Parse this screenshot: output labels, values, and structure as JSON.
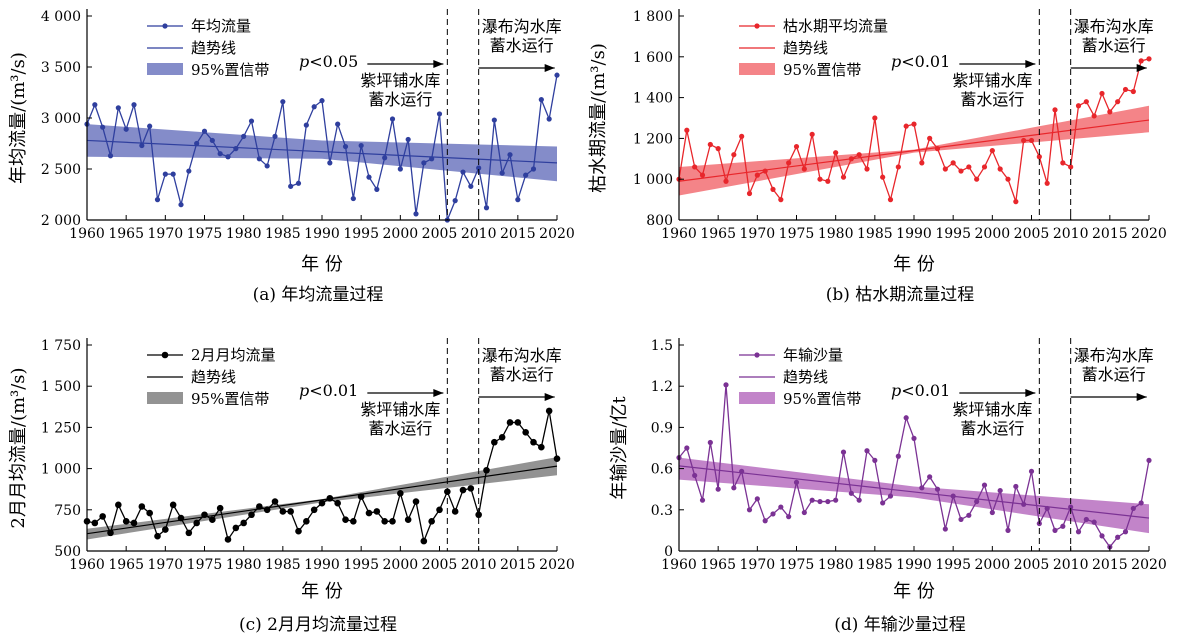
{
  "panels": [
    {
      "id": "a",
      "caption": "(a) 年均流量过程",
      "chart_data": {
        "type": "line",
        "xlabel": "年 份",
        "ylabel": "年均流量/(m³/s)",
        "xlim": [
          1960,
          2020
        ],
        "ylim": [
          2000,
          4000
        ],
        "xticks": [
          1960,
          1965,
          1970,
          1975,
          1980,
          1985,
          1990,
          1995,
          2000,
          2005,
          2010,
          2015,
          2020
        ],
        "yticks": [
          2000,
          2500,
          3000,
          3500,
          4000
        ],
        "ytick_labels": [
          "2 000",
          "2 500",
          "3 000",
          "3 500",
          "4 000"
        ],
        "color": "#2f3f9e",
        "band_color": "#6f78c0",
        "series": [
          {
            "name": "年均流量",
            "x": [
              1960,
              1961,
              1962,
              1963,
              1964,
              1965,
              1966,
              1967,
              1968,
              1969,
              1970,
              1971,
              1972,
              1973,
              1974,
              1975,
              1976,
              1977,
              1978,
              1979,
              1980,
              1981,
              1982,
              1983,
              1984,
              1985,
              1986,
              1987,
              1988,
              1989,
              1990,
              1991,
              1992,
              1993,
              1994,
              1995,
              1996,
              1997,
              1998,
              1999,
              2000,
              2001,
              2002,
              2003,
              2004,
              2005,
              2006,
              2007,
              2008,
              2009,
              2010,
              2011,
              2012,
              2013,
              2014,
              2015,
              2016,
              2017,
              2018,
              2019,
              2020
            ],
            "y": [
              2940,
              3130,
              2910,
              2630,
              3100,
              2890,
              3130,
              2730,
              2920,
              2200,
              2450,
              2450,
              2150,
              2480,
              2750,
              2870,
              2780,
              2650,
              2620,
              2700,
              2820,
              2970,
              2600,
              2530,
              2820,
              3160,
              2330,
              2360,
              2930,
              3110,
              3170,
              2560,
              2940,
              2720,
              2210,
              2730,
              2420,
              2300,
              2610,
              2990,
              2500,
              2790,
              2060,
              2560,
              2600,
              3040,
              2000,
              2190,
              2470,
              2330,
              2510,
              2120,
              2980,
              2460,
              2640,
              2200,
              2440,
              2500,
              3180,
              2990,
              3420
            ]
          },
          {
            "name": "趋势线",
            "x": [
              1960,
              2020
            ],
            "y": [
              2780,
              2560
            ]
          },
          {
            "name": "95%置信带",
            "x": [
              1960,
              1990,
              2020
            ],
            "upper": [
              2940,
              2780,
              2720
            ],
            "lower": [
              2620,
              2600,
              2380
            ]
          }
        ],
        "p_text": "p<0.05",
        "dashed_lines": [
          2006,
          2010
        ],
        "annotations": {
          "zipingpu": [
            "紫坪铺水库",
            "蓄水运行"
          ],
          "pubugou": [
            "瀑布沟水库",
            "蓄水运行"
          ]
        }
      }
    },
    {
      "id": "b",
      "caption": "(b) 枯水期流量过程",
      "chart_data": {
        "type": "line",
        "xlabel": "年 份",
        "ylabel": "枯水期流量/(m³/s)",
        "xlim": [
          1960,
          2020
        ],
        "ylim": [
          800,
          1800
        ],
        "xticks": [
          1960,
          1965,
          1970,
          1975,
          1980,
          1985,
          1990,
          1995,
          2000,
          2005,
          2010,
          2015,
          2020
        ],
        "yticks": [
          800,
          1000,
          1200,
          1400,
          1600,
          1800
        ],
        "ytick_labels": [
          "800",
          "1 000",
          "1 200",
          "1 400",
          "1 600",
          "1 800"
        ],
        "color": "#e8262b",
        "band_color": "#f26f73",
        "series": [
          {
            "name": "枯水期平均流量",
            "x": [
              1960,
              1961,
              1962,
              1963,
              1964,
              1965,
              1966,
              1967,
              1968,
              1969,
              1970,
              1971,
              1972,
              1973,
              1974,
              1975,
              1976,
              1977,
              1978,
              1979,
              1980,
              1981,
              1982,
              1983,
              1984,
              1985,
              1986,
              1987,
              1988,
              1989,
              1990,
              1991,
              1992,
              1993,
              1994,
              1995,
              1996,
              1997,
              1998,
              1999,
              2000,
              2001,
              2002,
              2003,
              2004,
              2005,
              2006,
              2007,
              2008,
              2009,
              2010,
              2011,
              2012,
              2013,
              2014,
              2015,
              2016,
              2017,
              2018,
              2019,
              2020
            ],
            "y": [
              1000,
              1240,
              1060,
              1020,
              1170,
              1150,
              990,
              1120,
              1210,
              930,
              1020,
              1040,
              950,
              900,
              1080,
              1160,
              1050,
              1220,
              1000,
              990,
              1130,
              1010,
              1100,
              1120,
              1050,
              1300,
              1010,
              900,
              1060,
              1260,
              1270,
              1080,
              1200,
              1150,
              1050,
              1080,
              1040,
              1060,
              1000,
              1060,
              1140,
              1050,
              1000,
              890,
              1190,
              1190,
              1110,
              980,
              1340,
              1080,
              1060,
              1360,
              1380,
              1310,
              1420,
              1330,
              1380,
              1440,
              1430,
              1580,
              1590
            ]
          },
          {
            "name": "趋势线",
            "x": [
              1960,
              2020
            ],
            "y": [
              990,
              1290
            ]
          },
          {
            "name": "95%置信带",
            "x": [
              1960,
              1990,
              2020
            ],
            "upper": [
              1060,
              1145,
              1360
            ],
            "lower": [
              920,
              1130,
              1230
            ]
          }
        ],
        "p_text": "p<0.01",
        "dashed_lines": [
          2006,
          2010
        ],
        "annotations": {
          "zipingpu": [
            "紫坪铺水库",
            "蓄水运行"
          ],
          "pubugou": [
            "瀑布沟水库",
            "蓄水运行"
          ]
        }
      }
    },
    {
      "id": "c",
      "caption": "(c) 2月月均流量过程",
      "chart_data": {
        "type": "line",
        "xlabel": "年 份",
        "ylabel": "2月月均流量/(m³/s)",
        "xlim": [
          1960,
          2020
        ],
        "ylim": [
          500,
          1750
        ],
        "xticks": [
          1960,
          1965,
          1970,
          1975,
          1980,
          1985,
          1990,
          1995,
          2000,
          2005,
          2010,
          2015,
          2020
        ],
        "yticks": [
          500,
          750,
          1000,
          1250,
          1500,
          1750
        ],
        "ytick_labels": [
          "500",
          "750",
          "1 000",
          "1 250",
          "1 500",
          "1 750"
        ],
        "color": "#000000",
        "band_color": "#808080",
        "series": [
          {
            "name": "2月月均流量",
            "x": [
              1960,
              1961,
              1962,
              1963,
              1964,
              1965,
              1966,
              1967,
              1968,
              1969,
              1970,
              1971,
              1972,
              1973,
              1974,
              1975,
              1976,
              1977,
              1978,
              1979,
              1980,
              1981,
              1982,
              1983,
              1984,
              1985,
              1986,
              1987,
              1988,
              1989,
              1990,
              1991,
              1992,
              1993,
              1994,
              1995,
              1996,
              1997,
              1998,
              1999,
              2000,
              2001,
              2002,
              2003,
              2004,
              2005,
              2006,
              2007,
              2008,
              2009,
              2010,
              2011,
              2012,
              2013,
              2014,
              2015,
              2016,
              2017,
              2018,
              2019,
              2020
            ],
            "y": [
              680,
              670,
              710,
              610,
              780,
              680,
              670,
              770,
              730,
              590,
              630,
              780,
              700,
              610,
              670,
              720,
              690,
              760,
              570,
              640,
              670,
              720,
              770,
              750,
              800,
              740,
              740,
              620,
              680,
              750,
              790,
              820,
              790,
              690,
              680,
              830,
              730,
              740,
              680,
              680,
              850,
              690,
              800,
              560,
              680,
              750,
              860,
              740,
              870,
              880,
              720,
              990,
              1160,
              1190,
              1280,
              1280,
              1220,
              1160,
              1130,
              1350,
              1060
            ]
          },
          {
            "name": "趋势线",
            "x": [
              1960,
              2020
            ],
            "y": [
              605,
              1015
            ]
          },
          {
            "name": "95%置信带",
            "x": [
              1960,
              1990,
              2020
            ],
            "upper": [
              635,
              815,
              1070
            ],
            "lower": [
              570,
              795,
              960
            ]
          }
        ],
        "p_text": "p<0.01",
        "dashed_lines": [
          2006,
          2010
        ],
        "annotations": {
          "zipingpu": [
            "紫坪铺水库",
            "蓄水运行"
          ],
          "pubugou": [
            "瀑布沟水库",
            "蓄水运行"
          ]
        }
      }
    },
    {
      "id": "d",
      "caption": "(d) 年输沙量过程",
      "chart_data": {
        "type": "line",
        "xlabel": "年 份",
        "ylabel": "年输沙量/亿t",
        "xlim": [
          1960,
          2020
        ],
        "ylim": [
          0,
          1.5
        ],
        "xticks": [
          1960,
          1965,
          1970,
          1975,
          1980,
          1985,
          1990,
          1995,
          2000,
          2005,
          2010,
          2015,
          2020
        ],
        "yticks": [
          0,
          0.3,
          0.6,
          0.9,
          1.2,
          1.5
        ],
        "ytick_labels": [
          "0",
          "0.3",
          "0.6",
          "0.9",
          "1.2",
          "1.5"
        ],
        "color": "#7b3294",
        "band_color": "#b76fbf",
        "series": [
          {
            "name": "年输沙量",
            "x": [
              1960,
              1961,
              1962,
              1963,
              1964,
              1965,
              1966,
              1967,
              1968,
              1969,
              1970,
              1971,
              1972,
              1973,
              1974,
              1975,
              1976,
              1977,
              1978,
              1979,
              1980,
              1981,
              1982,
              1983,
              1984,
              1985,
              1986,
              1987,
              1988,
              1989,
              1990,
              1991,
              1992,
              1993,
              1994,
              1995,
              1996,
              1997,
              1998,
              1999,
              2000,
              2001,
              2002,
              2003,
              2004,
              2005,
              2006,
              2007,
              2008,
              2009,
              2010,
              2011,
              2012,
              2013,
              2014,
              2015,
              2016,
              2017,
              2018,
              2019,
              2020
            ],
            "y": [
              0.68,
              0.75,
              0.55,
              0.37,
              0.79,
              0.45,
              1.21,
              0.46,
              0.58,
              0.3,
              0.38,
              0.22,
              0.27,
              0.32,
              0.25,
              0.5,
              0.28,
              0.37,
              0.36,
              0.36,
              0.37,
              0.72,
              0.42,
              0.37,
              0.73,
              0.66,
              0.35,
              0.4,
              0.69,
              0.97,
              0.82,
              0.46,
              0.54,
              0.45,
              0.16,
              0.4,
              0.23,
              0.26,
              0.36,
              0.48,
              0.28,
              0.44,
              0.15,
              0.47,
              0.34,
              0.58,
              0.2,
              0.31,
              0.15,
              0.18,
              0.32,
              0.14,
              0.23,
              0.21,
              0.11,
              0.03,
              0.1,
              0.14,
              0.31,
              0.35,
              0.66
            ]
          },
          {
            "name": "趋势线",
            "x": [
              1960,
              2020
            ],
            "y": [
              0.62,
              0.24
            ]
          },
          {
            "name": "95%置信带",
            "x": [
              1960,
              1990,
              2020
            ],
            "upper": [
              0.68,
              0.47,
              0.34
            ],
            "lower": [
              0.52,
              0.39,
              0.13
            ]
          }
        ],
        "p_text": "p<0.01",
        "dashed_lines": [
          2006,
          2010
        ],
        "annotations": {
          "zipingpu": [
            "紫坪铺水库",
            "蓄水运行"
          ],
          "pubugou": [
            "瀑布沟水库",
            "蓄水运行"
          ]
        }
      }
    }
  ]
}
